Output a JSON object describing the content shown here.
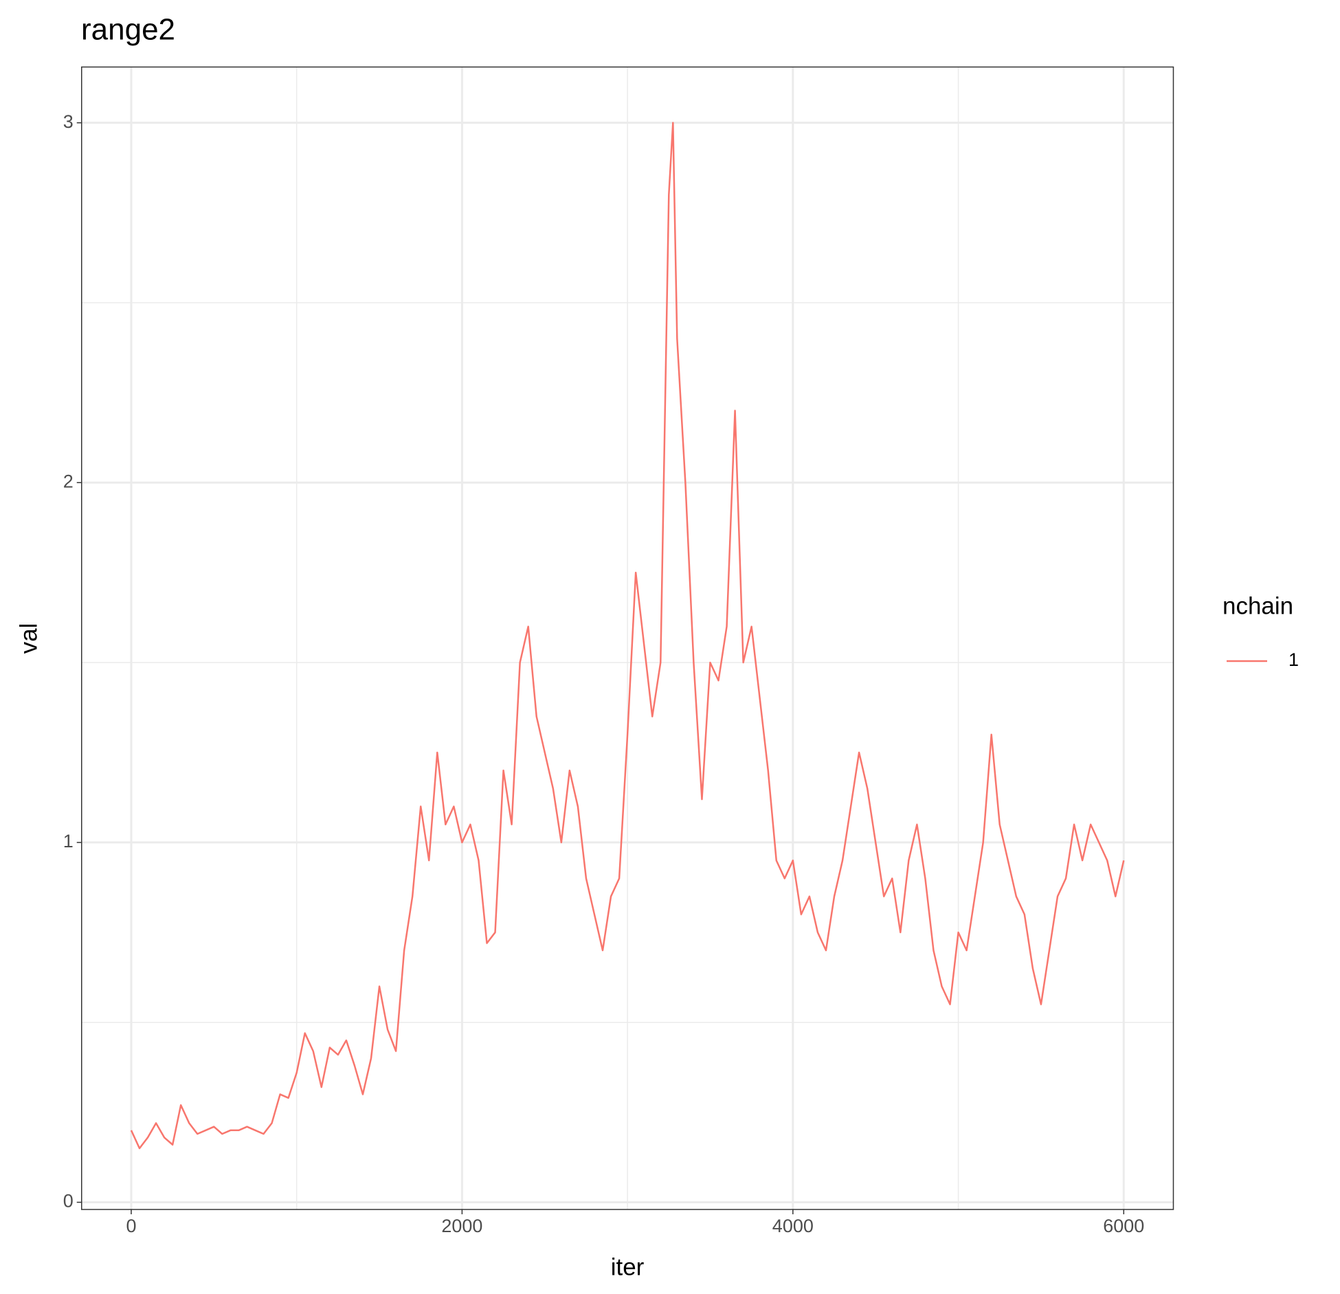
{
  "chart_data": {
    "type": "line",
    "title": "range2",
    "x_label": "iter",
    "y_label": "val",
    "x": [
      0,
      50,
      100,
      150,
      200,
      250,
      300,
      350,
      400,
      450,
      500,
      550,
      600,
      650,
      700,
      750,
      800,
      850,
      900,
      950,
      1000,
      1050,
      1100,
      1150,
      1200,
      1250,
      1300,
      1350,
      1400,
      1450,
      1500,
      1550,
      1600,
      1650,
      1700,
      1750,
      1800,
      1850,
      1900,
      1950,
      2000,
      2050,
      2100,
      2150,
      2200,
      2250,
      2300,
      2350,
      2400,
      2450,
      2500,
      2550,
      2600,
      2650,
      2700,
      2750,
      2800,
      2850,
      2900,
      2950,
      3000,
      3050,
      3100,
      3150,
      3200,
      3250,
      3275,
      3300,
      3350,
      3400,
      3450,
      3500,
      3550,
      3600,
      3650,
      3700,
      3750,
      3800,
      3850,
      3900,
      3950,
      4000,
      4050,
      4100,
      4150,
      4200,
      4250,
      4300,
      4350,
      4400,
      4450,
      4500,
      4550,
      4600,
      4650,
      4700,
      4750,
      4800,
      4850,
      4900,
      4950,
      5000,
      5050,
      5100,
      5150,
      5200,
      5250,
      5300,
      5350,
      5400,
      5450,
      5500,
      5550,
      5600,
      5650,
      5700,
      5750,
      5800,
      5850,
      5900,
      5950,
      6000
    ],
    "series": [
      {
        "name": "1",
        "color": "#F8766D",
        "values": [
          0.2,
          0.15,
          0.18,
          0.22,
          0.18,
          0.16,
          0.27,
          0.22,
          0.19,
          0.2,
          0.21,
          0.19,
          0.2,
          0.2,
          0.21,
          0.2,
          0.19,
          0.22,
          0.3,
          0.29,
          0.36,
          0.47,
          0.42,
          0.32,
          0.43,
          0.41,
          0.45,
          0.38,
          0.3,
          0.4,
          0.6,
          0.48,
          0.42,
          0.7,
          0.85,
          1.1,
          0.95,
          1.25,
          1.05,
          1.1,
          1.0,
          1.05,
          0.95,
          0.72,
          0.75,
          1.2,
          1.05,
          1.5,
          1.6,
          1.35,
          1.25,
          1.15,
          1.0,
          1.2,
          1.1,
          0.9,
          0.8,
          0.7,
          0.85,
          0.9,
          1.3,
          1.75,
          1.55,
          1.35,
          1.5,
          2.8,
          3.0,
          2.4,
          2.0,
          1.5,
          1.12,
          1.5,
          1.45,
          1.6,
          2.2,
          1.5,
          1.6,
          1.4,
          1.2,
          0.95,
          0.9,
          0.95,
          0.8,
          0.85,
          0.75,
          0.7,
          0.85,
          0.95,
          1.1,
          1.25,
          1.15,
          1.0,
          0.85,
          0.9,
          0.75,
          0.95,
          1.05,
          0.9,
          0.7,
          0.6,
          0.55,
          0.75,
          0.7,
          0.85,
          1.0,
          1.3,
          1.05,
          0.95,
          0.85,
          0.8,
          0.65,
          0.55,
          0.7,
          0.85,
          0.9,
          1.05,
          0.95,
          1.05,
          1.0,
          0.95,
          0.85,
          0.95
        ]
      }
    ],
    "xlim": [
      -300,
      6300
    ],
    "xticks": [
      0,
      2000,
      4000,
      6000
    ],
    "x_minor": [
      1000,
      3000,
      5000
    ],
    "ylim": [
      -0.02,
      3.155
    ],
    "yticks": [
      0,
      1,
      2,
      3
    ],
    "y_minor": [
      0.5,
      1.5,
      2.5
    ],
    "grid": true,
    "legend_title": "nchain",
    "legend_position": "right"
  }
}
